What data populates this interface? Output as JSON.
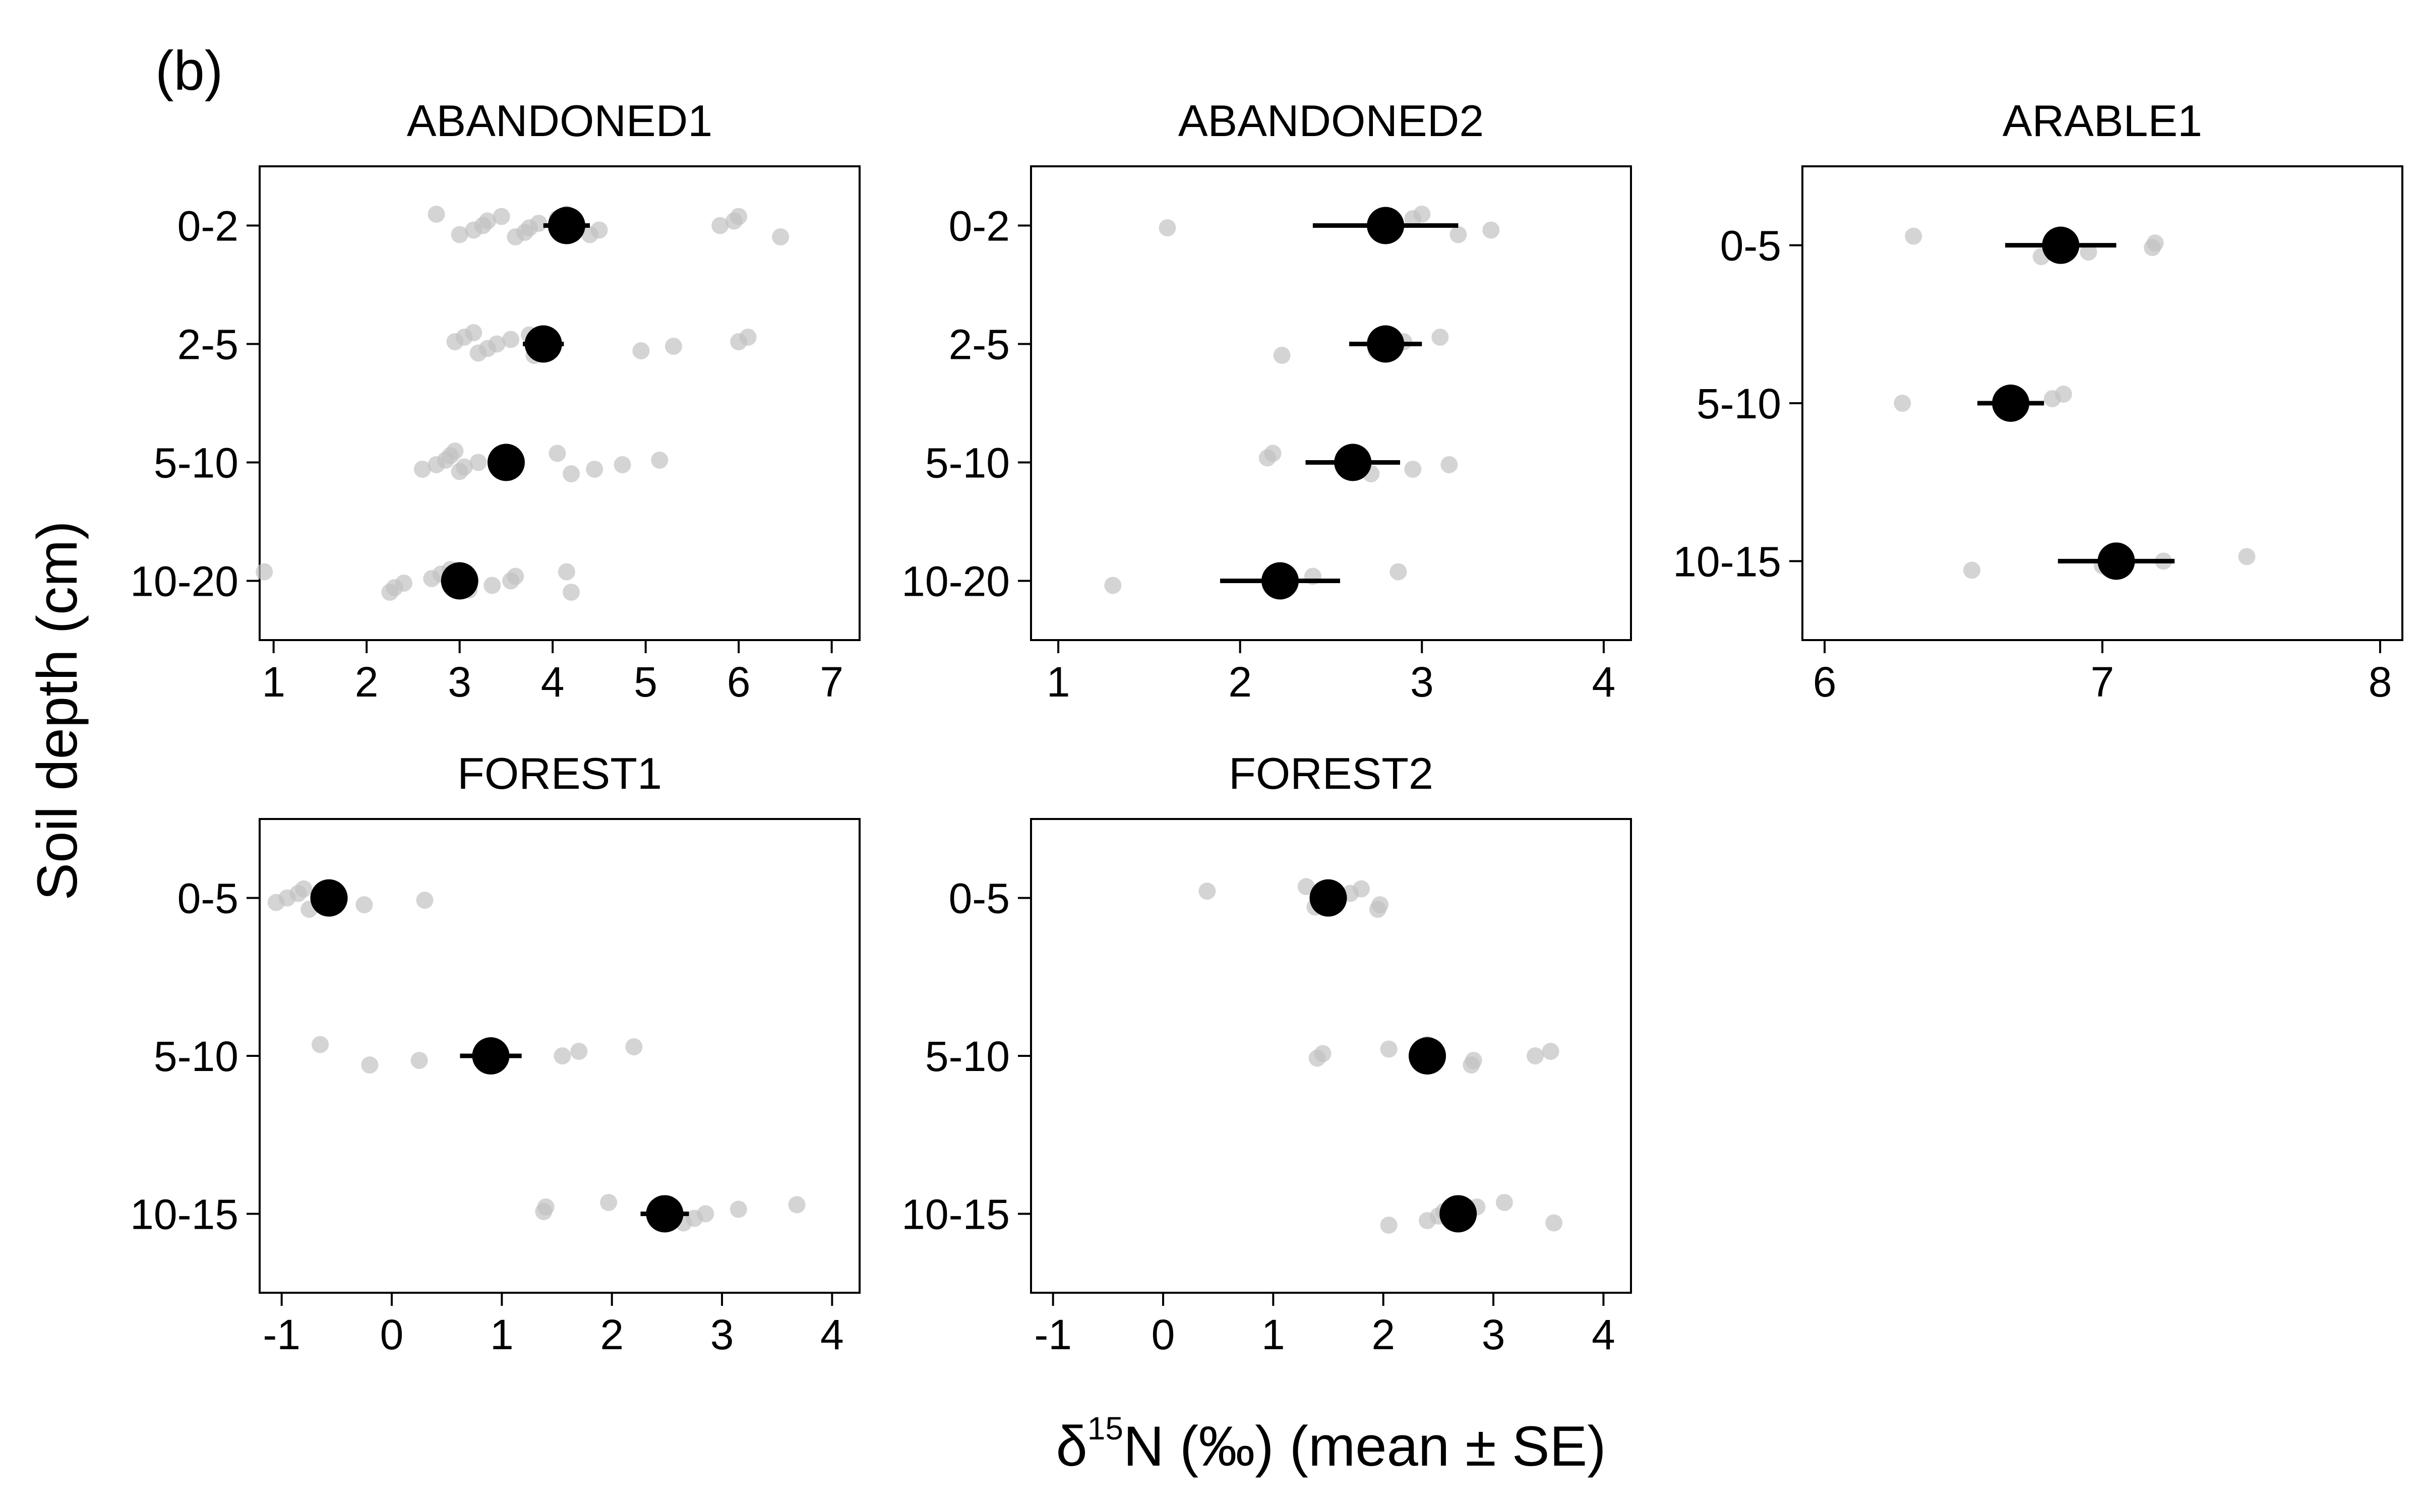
{
  "figure": {
    "panel_label": "(b)",
    "xlabel_prefix": "δ",
    "xlabel_superscript": "15",
    "xlabel_suffix": "N (‰) (mean ± SE)",
    "ylabel": "Soil depth (cm)"
  },
  "chart_data": [
    {
      "type": "scatter",
      "title": "ABANDONED1",
      "xlim": [
        0.85,
        7.3
      ],
      "xticks": [
        1,
        2,
        3,
        4,
        5,
        6,
        7
      ],
      "categories": [
        "0-2",
        "2-5",
        "5-10",
        "10-20"
      ],
      "means": [
        4.15,
        3.9,
        3.5,
        3.0
      ],
      "se": [
        0.25,
        0.22,
        0.1,
        0.1
      ],
      "points": [
        [
          2.75,
          3.0,
          3.15,
          3.25,
          3.3,
          3.45,
          3.6,
          3.7,
          3.75,
          3.85,
          4.05,
          4.15,
          4.4,
          4.5,
          5.8,
          5.95,
          6.0,
          6.45
        ],
        [
          2.95,
          3.05,
          3.15,
          3.2,
          3.3,
          3.4,
          3.55,
          3.75,
          3.8,
          4.95,
          5.3,
          6.0,
          6.1
        ],
        [
          2.6,
          2.75,
          2.85,
          2.9,
          2.95,
          3.0,
          3.05,
          3.2,
          3.55,
          4.05,
          4.2,
          4.45,
          4.75,
          5.15
        ],
        [
          0.9,
          2.25,
          2.3,
          2.4,
          2.7,
          2.8,
          2.9,
          3.1,
          3.35,
          3.55,
          3.6,
          4.15,
          4.2
        ]
      ]
    },
    {
      "type": "scatter",
      "title": "ABANDONED2",
      "xlim": [
        0.85,
        4.15
      ],
      "xticks": [
        1,
        2,
        3,
        4
      ],
      "categories": [
        "0-2",
        "2-5",
        "5-10",
        "10-20"
      ],
      "means": [
        2.8,
        2.8,
        2.62,
        2.22
      ],
      "se": [
        0.4,
        0.2,
        0.26,
        0.33
      ],
      "points": [
        [
          1.6,
          2.8,
          2.95,
          3.0,
          3.2,
          3.38
        ],
        [
          2.23,
          2.75,
          2.85,
          2.9,
          3.1
        ],
        [
          2.15,
          2.18,
          2.72,
          2.95,
          3.15
        ],
        [
          1.3,
          2.2,
          2.4,
          2.87
        ]
      ]
    },
    {
      "type": "scatter",
      "title": "ARABLE1",
      "xlim": [
        5.92,
        8.08
      ],
      "xticks": [
        6,
        7,
        8
      ],
      "categories": [
        "0-5",
        "5-10",
        "10-15"
      ],
      "means": [
        6.85,
        6.67,
        7.05
      ],
      "se": [
        0.2,
        0.12,
        0.21
      ],
      "points": [
        [
          6.32,
          6.78,
          6.95,
          7.18,
          7.19
        ],
        [
          6.28,
          6.82,
          6.86
        ],
        [
          6.53,
          7.0,
          7.22,
          7.52
        ]
      ]
    },
    {
      "type": "scatter",
      "title": "FOREST1",
      "xlim": [
        -1.2,
        4.25
      ],
      "xticks": [
        -1,
        0,
        1,
        2,
        3,
        4
      ],
      "xtick_labels": [
        "-1",
        "0",
        "1",
        "2",
        "3",
        "4"
      ],
      "categories": [
        "0-5",
        "5-10",
        "10-15"
      ],
      "means": [
        -0.57,
        0.9,
        2.48
      ],
      "se": [
        0.05,
        0.28,
        0.22
      ],
      "points": [
        [
          -1.05,
          -0.95,
          -0.85,
          -0.8,
          -0.75,
          -0.25,
          0.3
        ],
        [
          -0.65,
          -0.2,
          0.25,
          1.55,
          1.7,
          2.2
        ],
        [
          1.38,
          1.4,
          1.97,
          2.65,
          2.75,
          2.85,
          3.15,
          3.68
        ]
      ]
    },
    {
      "type": "scatter",
      "title": "FOREST2",
      "xlim": [
        -1.2,
        4.25
      ],
      "xticks": [
        -1,
        0,
        1,
        2,
        3,
        4
      ],
      "xtick_labels": [
        "-1",
        "0",
        "1",
        "2",
        "3",
        "4"
      ],
      "categories": [
        "0-5",
        "5-10",
        "10-15"
      ],
      "means": [
        1.5,
        2.4,
        2.68
      ],
      "se": [
        0.07,
        0.16,
        0.1
      ],
      "points": [
        [
          0.4,
          1.3,
          1.38,
          1.48,
          1.55,
          1.7,
          1.8,
          1.95,
          1.97
        ],
        [
          1.4,
          1.45,
          2.05,
          2.4,
          2.8,
          2.82,
          3.38,
          3.52
        ],
        [
          2.05,
          2.4,
          2.5,
          2.55,
          2.85,
          3.1,
          3.55
        ]
      ]
    }
  ]
}
